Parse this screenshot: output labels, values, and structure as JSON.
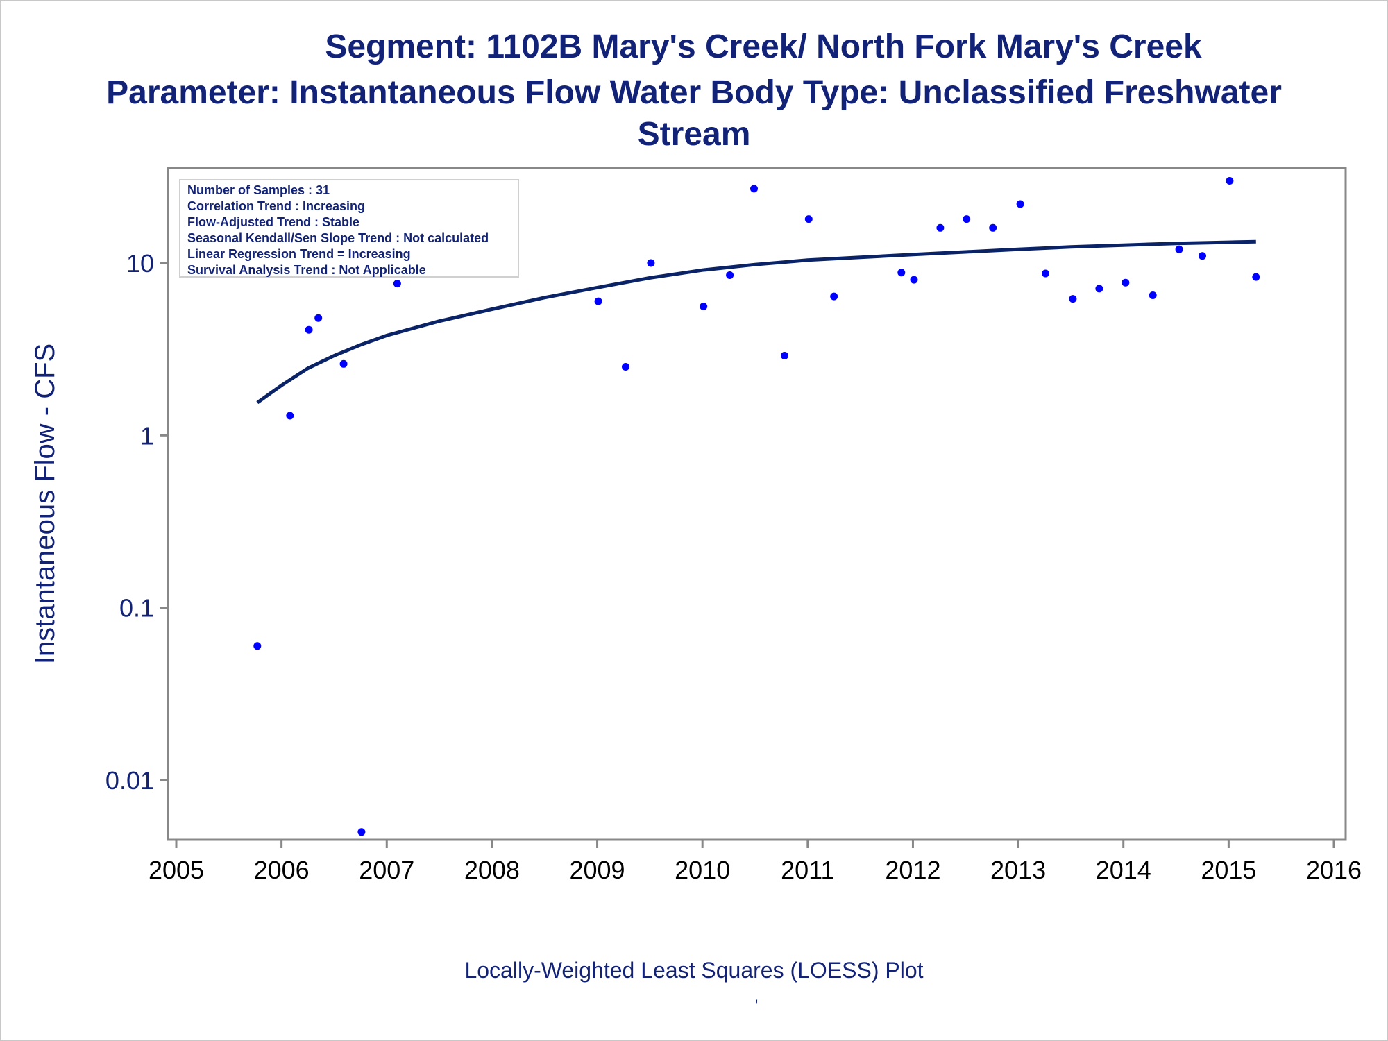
{
  "titles": {
    "line1": "Segment: 1102B  Mary's Creek/ North Fork Mary's Creek",
    "line2": "Parameter: Instantaneous Flow   Water Body Type: Unclassified Freshwater",
    "line3": "Stream"
  },
  "stats": [
    "Number of Samples : 31",
    "Correlation Trend : Increasing",
    "Flow-Adjusted Trend : Stable",
    "Seasonal Kendall/Sen Slope Trend : Not calculated",
    "Linear Regression Trend = Increasing",
    "Survival Analysis Trend : Not Applicable"
  ],
  "footnote": "Locally-Weighted Least Squares (LOESS) Plot",
  "footnote_mark": "'",
  "colors": {
    "text": "#112277",
    "points": "#0000ff",
    "curve": "#0a2266",
    "axis": "#888888"
  },
  "chart_data": {
    "type": "scatter",
    "title": "Segment: 1102B  Mary's Creek/ North Fork Mary's Creek",
    "ylabel": "Instantaneous Flow - CFS",
    "xlabel": "",
    "y_scale": "log",
    "xlim": [
      2005,
      2016
    ],
    "ylim": [
      0.004,
      40
    ],
    "x_ticks": [
      "2005",
      "2006",
      "2007",
      "2008",
      "2009",
      "2010",
      "2011",
      "2012",
      "2013",
      "2014",
      "2015",
      "2016"
    ],
    "y_ticks": [
      "0.01",
      "0.1",
      "1",
      "10"
    ],
    "legend": "none",
    "grid": false,
    "points": [
      {
        "x": 2005.77,
        "y": 0.06
      },
      {
        "x": 2006.08,
        "y": 1.3
      },
      {
        "x": 2006.26,
        "y": 4.1
      },
      {
        "x": 2006.35,
        "y": 4.8
      },
      {
        "x": 2006.59,
        "y": 2.6
      },
      {
        "x": 2006.76,
        "y": 0.005
      },
      {
        "x": 2007.1,
        "y": 7.6
      },
      {
        "x": 2009.01,
        "y": 6.0
      },
      {
        "x": 2009.27,
        "y": 2.5
      },
      {
        "x": 2009.51,
        "y": 10.0
      },
      {
        "x": 2010.01,
        "y": 5.6
      },
      {
        "x": 2010.26,
        "y": 8.5
      },
      {
        "x": 2010.49,
        "y": 27.0
      },
      {
        "x": 2010.78,
        "y": 2.9
      },
      {
        "x": 2011.01,
        "y": 18.0
      },
      {
        "x": 2011.25,
        "y": 6.4
      },
      {
        "x": 2011.89,
        "y": 8.8
      },
      {
        "x": 2012.01,
        "y": 8.0
      },
      {
        "x": 2012.26,
        "y": 16.0
      },
      {
        "x": 2012.51,
        "y": 18.0
      },
      {
        "x": 2012.76,
        "y": 16.0
      },
      {
        "x": 2013.02,
        "y": 22.0
      },
      {
        "x": 2013.26,
        "y": 8.7
      },
      {
        "x": 2013.52,
        "y": 6.2
      },
      {
        "x": 2013.77,
        "y": 7.1
      },
      {
        "x": 2014.02,
        "y": 7.7
      },
      {
        "x": 2014.28,
        "y": 6.5
      },
      {
        "x": 2014.53,
        "y": 12.0
      },
      {
        "x": 2014.75,
        "y": 11.0
      },
      {
        "x": 2015.01,
        "y": 30.0
      },
      {
        "x": 2015.26,
        "y": 8.3
      }
    ],
    "loess_curve": [
      {
        "x": 2005.77,
        "y": 1.55
      },
      {
        "x": 2006.0,
        "y": 1.95
      },
      {
        "x": 2006.25,
        "y": 2.45
      },
      {
        "x": 2006.5,
        "y": 2.9
      },
      {
        "x": 2006.75,
        "y": 3.35
      },
      {
        "x": 2007.0,
        "y": 3.8
      },
      {
        "x": 2007.5,
        "y": 4.6
      },
      {
        "x": 2008.0,
        "y": 5.4
      },
      {
        "x": 2008.5,
        "y": 6.3
      },
      {
        "x": 2009.0,
        "y": 7.2
      },
      {
        "x": 2009.5,
        "y": 8.2
      },
      {
        "x": 2010.0,
        "y": 9.1
      },
      {
        "x": 2010.5,
        "y": 9.8
      },
      {
        "x": 2011.0,
        "y": 10.4
      },
      {
        "x": 2011.5,
        "y": 10.8
      },
      {
        "x": 2012.0,
        "y": 11.2
      },
      {
        "x": 2012.5,
        "y": 11.6
      },
      {
        "x": 2013.0,
        "y": 12.0
      },
      {
        "x": 2013.5,
        "y": 12.4
      },
      {
        "x": 2014.0,
        "y": 12.7
      },
      {
        "x": 2014.5,
        "y": 13.0
      },
      {
        "x": 2015.0,
        "y": 13.2
      },
      {
        "x": 2015.26,
        "y": 13.3
      }
    ]
  }
}
